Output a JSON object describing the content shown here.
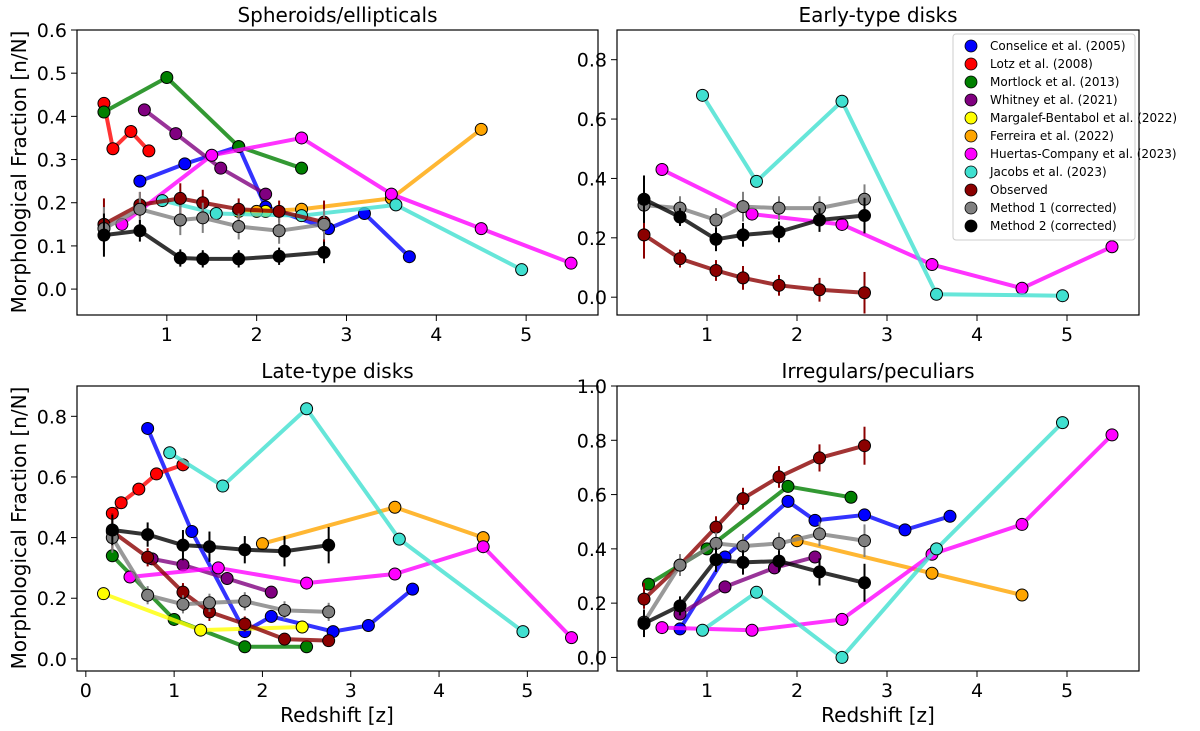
{
  "figure": {
    "ylabel": "Morphological Fraction [n/N]",
    "xlabel": "Redshift [z]"
  },
  "legend": [
    {
      "id": "conselice",
      "label": "Conselice et al. (2005)",
      "color": "#0000ff"
    },
    {
      "id": "lotz",
      "label": "Lotz et al. (2008)",
      "color": "#ff0000"
    },
    {
      "id": "mortlock",
      "label": "Mortlock et al. (2013)",
      "color": "#008000"
    },
    {
      "id": "whitney",
      "label": "Whitney et al. (2021)",
      "color": "#800080"
    },
    {
      "id": "margalef",
      "label": "Margalef-Bentabol et al. (2022)",
      "color": "#ffff00"
    },
    {
      "id": "ferreira",
      "label": "Ferreira et al. (2022)",
      "color": "#ffa500"
    },
    {
      "id": "huertas",
      "label": "Huertas-Company et al. (2023)",
      "color": "#ff00ff"
    },
    {
      "id": "jacobs",
      "label": "Jacobs et al. (2023)",
      "color": "#40e0d0"
    },
    {
      "id": "observed",
      "label": "Observed",
      "color": "#8b0000"
    },
    {
      "id": "method1",
      "label": "Method 1 (corrected)",
      "color": "#808080"
    },
    {
      "id": "method2",
      "label": "Method 2 (corrected)",
      "color": "#000000"
    }
  ],
  "chart_data": [
    {
      "type": "line",
      "title": "Spheroids/ellipticals",
      "xlim": [
        0.0,
        5.8
      ],
      "ylim": [
        -0.06,
        0.6
      ],
      "xticks": [
        "1",
        "2",
        "3",
        "4",
        "5"
      ],
      "xtick_values": [
        1,
        2,
        3,
        4,
        5
      ],
      "yticks": [
        "0.0",
        "0.1",
        "0.2",
        "0.3",
        "0.4",
        "0.5",
        "0.6"
      ],
      "ytick_values": [
        0.0,
        0.1,
        0.2,
        0.3,
        0.4,
        0.5,
        0.6
      ],
      "series": [
        {
          "id": "conselice",
          "x": [
            0.7,
            1.2,
            1.8,
            2.1,
            2.8,
            3.2,
            3.7
          ],
          "y": [
            0.25,
            0.29,
            0.33,
            0.19,
            0.14,
            0.175,
            0.075
          ]
        },
        {
          "id": "lotz",
          "x": [
            0.3,
            0.4,
            0.6,
            0.8
          ],
          "y": [
            0.43,
            0.325,
            0.365,
            0.32
          ]
        },
        {
          "id": "mortlock",
          "x": [
            0.3,
            1.0,
            1.8,
            2.5
          ],
          "y": [
            0.41,
            0.49,
            0.33,
            0.28
          ]
        },
        {
          "id": "whitney",
          "x": [
            0.75,
            1.1,
            1.6,
            2.1
          ],
          "y": [
            0.415,
            0.36,
            0.28,
            0.22
          ]
        },
        {
          "id": "margalef",
          "x": [
            1.8,
            2.1
          ],
          "y": [
            0.18,
            0.18
          ]
        },
        {
          "id": "ferreira",
          "x": [
            2.0,
            2.5,
            3.5,
            4.5
          ],
          "y": [
            0.18,
            0.185,
            0.21,
            0.37
          ]
        },
        {
          "id": "huertas",
          "x": [
            0.5,
            1.5,
            2.5,
            3.5,
            4.5,
            5.5
          ],
          "y": [
            0.15,
            0.31,
            0.35,
            0.22,
            0.14,
            0.06
          ]
        },
        {
          "id": "jacobs",
          "x": [
            0.95,
            1.55,
            2.5,
            3.55,
            4.95
          ],
          "y": [
            0.205,
            0.175,
            0.17,
            0.195,
            0.045
          ]
        },
        {
          "id": "observed",
          "x": [
            0.3,
            0.7,
            1.15,
            1.4,
            1.8,
            2.25,
            2.75
          ],
          "y": [
            0.15,
            0.195,
            0.21,
            0.2,
            0.185,
            0.18,
            0.155
          ],
          "err": [
            0.06,
            0.03,
            0.035,
            0.03,
            0.025,
            0.025,
            0.05
          ]
        },
        {
          "id": "method1",
          "x": [
            0.3,
            0.7,
            1.15,
            1.4,
            1.8,
            2.25,
            2.75
          ],
          "y": [
            0.14,
            0.185,
            0.16,
            0.165,
            0.145,
            0.135,
            0.15
          ],
          "err": [
            0.05,
            0.04,
            0.035,
            0.035,
            0.03,
            0.03,
            0.035
          ]
        },
        {
          "id": "method2",
          "x": [
            0.3,
            0.7,
            1.15,
            1.4,
            1.8,
            2.25,
            2.75
          ],
          "y": [
            0.125,
            0.135,
            0.072,
            0.07,
            0.07,
            0.076,
            0.085
          ],
          "err": [
            0.05,
            0.025,
            0.02,
            0.02,
            0.02,
            0.02,
            0.025
          ]
        }
      ]
    },
    {
      "type": "line",
      "title": "Early-type disks",
      "xlim": [
        0.0,
        5.8
      ],
      "ylim": [
        -0.06,
        0.9
      ],
      "xticks": [
        "1",
        "2",
        "3",
        "4",
        "5"
      ],
      "xtick_values": [
        1,
        2,
        3,
        4,
        5
      ],
      "yticks": [
        "0.0",
        "0.2",
        "0.4",
        "0.6",
        "0.8"
      ],
      "ytick_values": [
        0.0,
        0.2,
        0.4,
        0.6,
        0.8
      ],
      "series": [
        {
          "id": "huertas",
          "x": [
            0.5,
            1.5,
            2.5,
            3.5,
            4.5,
            5.5
          ],
          "y": [
            0.43,
            0.28,
            0.245,
            0.11,
            0.03,
            0.17
          ]
        },
        {
          "id": "jacobs",
          "x": [
            0.95,
            1.55,
            2.5,
            3.55,
            4.95
          ],
          "y": [
            0.68,
            0.39,
            0.66,
            0.01,
            0.005
          ]
        },
        {
          "id": "observed",
          "x": [
            0.3,
            0.7,
            1.1,
            1.4,
            1.8,
            2.25,
            2.75
          ],
          "y": [
            0.21,
            0.13,
            0.09,
            0.065,
            0.04,
            0.025,
            0.015
          ],
          "err": [
            0.08,
            0.03,
            0.035,
            0.04,
            0.035,
            0.04,
            0.07
          ]
        },
        {
          "id": "method1",
          "x": [
            0.3,
            0.7,
            1.1,
            1.4,
            1.8,
            2.25,
            2.75
          ],
          "y": [
            0.31,
            0.3,
            0.26,
            0.305,
            0.3,
            0.3,
            0.33
          ],
          "err": [
            0.06,
            0.04,
            0.04,
            0.05,
            0.04,
            0.04,
            0.05
          ]
        },
        {
          "id": "method2",
          "x": [
            0.3,
            0.7,
            1.1,
            1.4,
            1.8,
            2.25,
            2.75
          ],
          "y": [
            0.33,
            0.27,
            0.195,
            0.21,
            0.22,
            0.26,
            0.275
          ],
          "err": [
            0.08,
            0.03,
            0.04,
            0.04,
            0.035,
            0.04,
            0.06
          ]
        }
      ]
    },
    {
      "type": "line",
      "title": "Late-type disks",
      "xlim": [
        -0.1,
        5.8
      ],
      "ylim": [
        -0.04,
        0.9
      ],
      "xticks": [
        "0",
        "1",
        "2",
        "3",
        "4",
        "5"
      ],
      "xtick_values": [
        0,
        1,
        2,
        3,
        4,
        5
      ],
      "yticks": [
        "0.0",
        "0.2",
        "0.4",
        "0.6",
        "0.8"
      ],
      "ytick_values": [
        0.0,
        0.2,
        0.4,
        0.6,
        0.8
      ],
      "series": [
        {
          "id": "conselice",
          "x": [
            0.7,
            1.2,
            1.8,
            2.1,
            2.8,
            3.2,
            3.7
          ],
          "y": [
            0.76,
            0.42,
            0.09,
            0.14,
            0.09,
            0.11,
            0.23
          ]
        },
        {
          "id": "lotz",
          "x": [
            0.3,
            0.4,
            0.6,
            0.8,
            1.1
          ],
          "y": [
            0.48,
            0.515,
            0.56,
            0.61,
            0.64
          ]
        },
        {
          "id": "mortlock",
          "x": [
            0.3,
            1.0,
            1.8,
            2.5
          ],
          "y": [
            0.34,
            0.13,
            0.04,
            0.04
          ]
        },
        {
          "id": "whitney",
          "x": [
            0.75,
            1.1,
            1.6,
            2.1
          ],
          "y": [
            0.33,
            0.31,
            0.265,
            0.22
          ]
        },
        {
          "id": "margalef",
          "x": [
            0.2,
            1.3,
            2.45
          ],
          "y": [
            0.215,
            0.095,
            0.105
          ]
        },
        {
          "id": "ferreira",
          "x": [
            2.0,
            3.5,
            4.5
          ],
          "y": [
            0.38,
            0.5,
            0.4
          ]
        },
        {
          "id": "huertas",
          "x": [
            0.5,
            1.5,
            2.5,
            3.5,
            4.5,
            5.5
          ],
          "y": [
            0.27,
            0.3,
            0.25,
            0.28,
            0.37,
            0.07
          ]
        },
        {
          "id": "jacobs",
          "x": [
            0.95,
            1.55,
            2.5,
            3.55,
            4.95
          ],
          "y": [
            0.68,
            0.57,
            0.825,
            0.395,
            0.09
          ]
        },
        {
          "id": "observed",
          "x": [
            0.3,
            0.7,
            1.1,
            1.4,
            1.8,
            2.25,
            2.75
          ],
          "y": [
            0.42,
            0.335,
            0.22,
            0.155,
            0.115,
            0.065,
            0.06
          ],
          "err": [
            0.06,
            0.03,
            0.03,
            0.03,
            0.025,
            0.02,
            0.02
          ]
        },
        {
          "id": "method1",
          "x": [
            0.3,
            0.7,
            1.1,
            1.4,
            1.8,
            2.25,
            2.75
          ],
          "y": [
            0.4,
            0.21,
            0.18,
            0.185,
            0.19,
            0.16,
            0.155
          ],
          "err": [
            0.05,
            0.03,
            0.03,
            0.03,
            0.03,
            0.03,
            0.03
          ]
        },
        {
          "id": "method2",
          "x": [
            0.3,
            0.7,
            1.1,
            1.4,
            1.8,
            2.25,
            2.75
          ],
          "y": [
            0.425,
            0.41,
            0.375,
            0.37,
            0.36,
            0.355,
            0.375
          ],
          "err": [
            0.05,
            0.04,
            0.05,
            0.05,
            0.045,
            0.05,
            0.06
          ]
        }
      ]
    },
    {
      "type": "line",
      "title": "Irregulars/peculiars",
      "xlim": [
        0.0,
        5.8
      ],
      "ylim": [
        -0.05,
        1.0
      ],
      "xticks": [
        "1",
        "2",
        "3",
        "4",
        "5"
      ],
      "xtick_values": [
        1,
        2,
        3,
        4,
        5
      ],
      "yticks": [
        "0.0",
        "0.2",
        "0.4",
        "0.6",
        "0.8",
        "1.0"
      ],
      "ytick_values": [
        0.0,
        0.2,
        0.4,
        0.6,
        0.8,
        1.0
      ],
      "series": [
        {
          "id": "conselice",
          "x": [
            0.7,
            1.2,
            1.9,
            2.2,
            2.75,
            3.2,
            3.7
          ],
          "y": [
            0.105,
            0.37,
            0.575,
            0.505,
            0.525,
            0.47,
            0.52
          ]
        },
        {
          "id": "mortlock",
          "x": [
            0.35,
            1.0,
            1.9,
            2.6
          ],
          "y": [
            0.27,
            0.4,
            0.63,
            0.59
          ]
        },
        {
          "id": "whitney",
          "x": [
            0.7,
            1.2,
            1.75,
            2.2
          ],
          "y": [
            0.16,
            0.26,
            0.33,
            0.37
          ]
        },
        {
          "id": "ferreira",
          "x": [
            2.0,
            3.5,
            4.5
          ],
          "y": [
            0.43,
            0.31,
            0.23
          ]
        },
        {
          "id": "huertas",
          "x": [
            0.5,
            1.5,
            2.5,
            3.5,
            4.5,
            5.5
          ],
          "y": [
            0.11,
            0.1,
            0.14,
            0.38,
            0.49,
            0.82
          ]
        },
        {
          "id": "jacobs",
          "x": [
            0.95,
            1.55,
            2.5,
            3.55,
            4.95
          ],
          "y": [
            0.1,
            0.24,
            0.0,
            0.4,
            0.865
          ]
        },
        {
          "id": "observed",
          "x": [
            0.3,
            0.7,
            1.1,
            1.4,
            1.8,
            2.25,
            2.75
          ],
          "y": [
            0.215,
            0.34,
            0.48,
            0.585,
            0.665,
            0.735,
            0.78
          ],
          "err": [
            0.06,
            0.04,
            0.04,
            0.04,
            0.04,
            0.05,
            0.07
          ]
        },
        {
          "id": "method1",
          "x": [
            0.3,
            0.7,
            1.1,
            1.4,
            1.8,
            2.25,
            2.75
          ],
          "y": [
            0.13,
            0.34,
            0.42,
            0.41,
            0.42,
            0.455,
            0.43
          ],
          "err": [
            0.05,
            0.04,
            0.04,
            0.045,
            0.04,
            0.045,
            0.06
          ]
        },
        {
          "id": "method2",
          "x": [
            0.3,
            0.7,
            1.1,
            1.4,
            1.8,
            2.25,
            2.75
          ],
          "y": [
            0.125,
            0.19,
            0.36,
            0.35,
            0.355,
            0.315,
            0.275
          ],
          "err": [
            0.05,
            0.035,
            0.045,
            0.045,
            0.04,
            0.05,
            0.07
          ]
        }
      ]
    }
  ]
}
